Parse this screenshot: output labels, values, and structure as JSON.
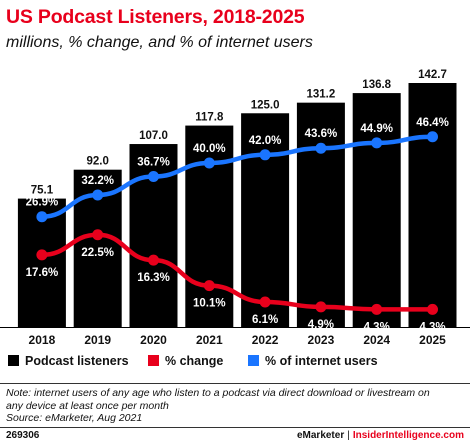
{
  "header": {
    "title": "US Podcast Listeners, 2018-2025",
    "subtitle": "millions, % change, and % of internet users"
  },
  "chart_data": {
    "type": "bar",
    "categories": [
      "2018",
      "2019",
      "2020",
      "2021",
      "2022",
      "2023",
      "2024",
      "2025"
    ],
    "series": [
      {
        "name": "Podcast listeners",
        "type": "bar",
        "color": "#000000",
        "values": [
          75.1,
          92.0,
          107.0,
          117.8,
          125.0,
          131.2,
          136.8,
          142.7
        ],
        "labels": [
          "75.1",
          "92.0",
          "107.0",
          "117.8",
          "125.0",
          "131.2",
          "136.8",
          "142.7"
        ]
      },
      {
        "name": "% change",
        "type": "line",
        "color": "#e8001c",
        "values": [
          17.6,
          22.5,
          16.3,
          10.1,
          6.1,
          4.9,
          4.3,
          4.3
        ],
        "labels": [
          "17.6%",
          "22.5%",
          "16.3%",
          "10.1%",
          "6.1%",
          "4.9%",
          "4.3%",
          "4.3%"
        ]
      },
      {
        "name": "% of internet users",
        "type": "line",
        "color": "#1a75ff",
        "values": [
          26.9,
          32.2,
          36.7,
          40.0,
          42.0,
          43.6,
          44.9,
          46.4
        ],
        "labels": [
          "26.9%",
          "32.2%",
          "36.7%",
          "40.0%",
          "42.0%",
          "43.6%",
          "44.9%",
          "46.4%"
        ]
      }
    ],
    "grid": false,
    "legend_position": "bottom"
  },
  "legend": [
    {
      "label": "Podcast listeners",
      "color": "#000000"
    },
    {
      "label": "% change",
      "color": "#e8001c"
    },
    {
      "label": "% of internet users",
      "color": "#1a75ff"
    }
  ],
  "note": {
    "line1": "Note: internet users of any age who listen to a podcast via direct download or livestream on",
    "line2": "any device at least once per month",
    "line3": "Source: eMarketer, Aug 2021"
  },
  "footer": {
    "id": "269306",
    "brand1": "eMarketer",
    "separator": "|",
    "brand2": "InsiderIntelligence.com"
  }
}
